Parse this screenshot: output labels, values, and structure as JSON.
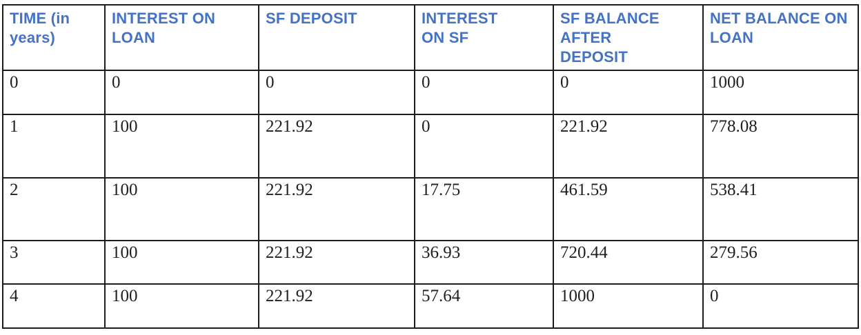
{
  "table": {
    "headers": [
      "TIME (in years)",
      "INTEREST ON LOAN",
      "SF DEPOSIT",
      "INTEREST ON SF",
      "SF BALANCE AFTER DEPOSIT",
      "NET BALANCE ON LOAN"
    ],
    "rows": [
      [
        "0",
        "0",
        "0",
        "0",
        "0",
        "1000"
      ],
      [
        "1",
        "100",
        "221.92",
        "0",
        "221.92",
        "778.08"
      ],
      [
        "2",
        "100",
        "221.92",
        "17.75",
        "461.59",
        "538.41"
      ],
      [
        "3",
        "100",
        "221.92",
        "36.93",
        "720.44",
        "279.56"
      ],
      [
        "4",
        "100",
        "221.92",
        "57.64",
        "1000",
        "0"
      ]
    ]
  },
  "colors": {
    "header_text": "#4472c4",
    "body_text": "#1f1f1f",
    "border": "#1c1c1c",
    "background": "#ffffff"
  }
}
